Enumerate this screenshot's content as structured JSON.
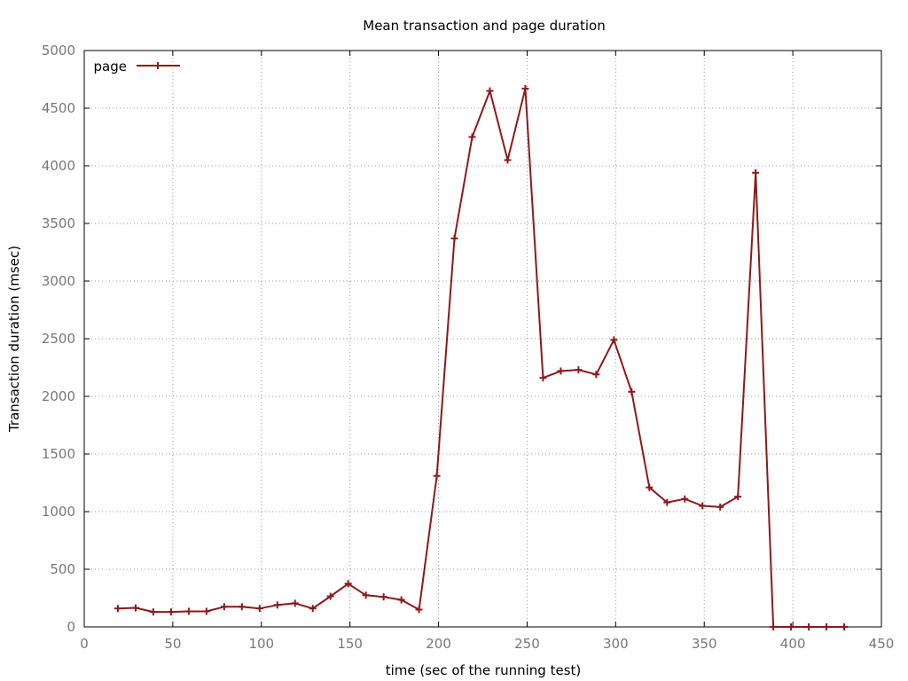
{
  "chart_data": {
    "type": "line",
    "title": "Mean transaction and page duration",
    "xlabel": "time (sec of the running test)",
    "ylabel": "Transaction duration (msec)",
    "xlim": [
      0,
      450
    ],
    "ylim": [
      0,
      5000
    ],
    "x_ticks": [
      0,
      50,
      100,
      150,
      200,
      250,
      300,
      350,
      400,
      450
    ],
    "y_ticks": [
      0,
      500,
      1000,
      1500,
      2000,
      2500,
      3000,
      3500,
      4000,
      4500,
      5000
    ],
    "grid": true,
    "legend_position": "top-left",
    "series": [
      {
        "name": "page",
        "color": "#8b1a1a",
        "marker": "plus",
        "x": [
          19,
          29,
          39,
          49,
          59,
          69,
          79,
          89,
          99,
          109,
          119,
          129,
          139,
          149,
          159,
          169,
          179,
          189,
          199,
          209,
          219,
          229,
          239,
          249,
          259,
          269,
          279,
          289,
          299,
          309,
          319,
          329,
          339,
          349,
          359,
          369,
          379,
          389,
          399,
          409,
          419,
          429
        ],
        "y": [
          160,
          165,
          130,
          130,
          135,
          135,
          175,
          175,
          160,
          190,
          205,
          160,
          265,
          375,
          275,
          260,
          235,
          150,
          1310,
          3370,
          4250,
          4650,
          4050,
          4670,
          2160,
          2220,
          2230,
          2190,
          2490,
          2040,
          1210,
          1080,
          1110,
          1050,
          1040,
          1130,
          3940,
          0,
          0,
          0,
          0,
          0
        ]
      }
    ]
  }
}
